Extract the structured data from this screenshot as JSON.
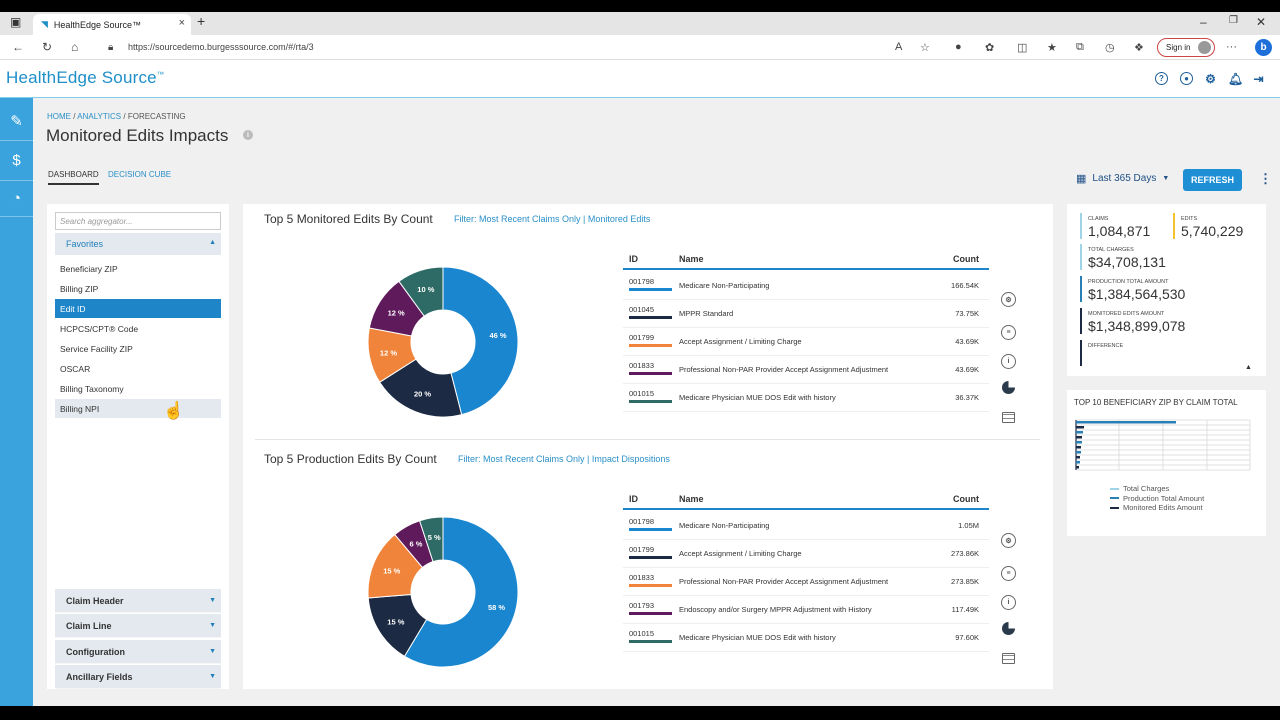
{
  "browser": {
    "tab_title": "HealthEdge Source™",
    "url": "https://sourcedemo.burgesssource.com/#/rta/3",
    "signin_label": "Sign in"
  },
  "app": {
    "logo": "HealthEdge Source",
    "logo_tm": "™"
  },
  "breadcrumb": {
    "home": "HOME",
    "analytics": "ANALYTICS",
    "current": "FORECASTING",
    "sep": "/"
  },
  "page": {
    "title": "Monitored Edits Impacts",
    "tabs": [
      {
        "label": "DASHBOARD"
      },
      {
        "label": "DECISION CUBE"
      }
    ],
    "date_range": "Last 365 Days",
    "refresh_label": "REFRESH"
  },
  "aggregator": {
    "search_placeholder": "Search aggregator...",
    "favorites_label": "Favorites",
    "items": [
      {
        "label": "Beneficiary ZIP"
      },
      {
        "label": "Billing ZIP"
      },
      {
        "label": "Edit ID"
      },
      {
        "label": "HCPCS/CPT® Code"
      },
      {
        "label": "Service Facility ZIP"
      },
      {
        "label": "OSCAR"
      },
      {
        "label": "Billing Taxonomy"
      },
      {
        "label": "Billing NPI"
      }
    ],
    "sections": [
      {
        "label": "Claim Header"
      },
      {
        "label": "Claim Line"
      },
      {
        "label": "Configuration"
      },
      {
        "label": "Ancillary Fields"
      }
    ]
  },
  "monitored": {
    "title": "Top 5 Monitored Edits By Count",
    "filter_label": "Filter:",
    "filter_value": "Most Recent Claims Only | Monitored Edits",
    "columns": {
      "id": "ID",
      "name": "Name",
      "count": "Count"
    },
    "rows": [
      {
        "id": "001798",
        "name": "Medicare Non-Participating",
        "count": "166.54K"
      },
      {
        "id": "001045",
        "name": "MPPR Standard",
        "count": "73.75K"
      },
      {
        "id": "001799",
        "name": "Accept Assignment / Limiting Charge",
        "count": "43.69K"
      },
      {
        "id": "001833",
        "name": "Professional Non-PAR Provider Accept Assignment Adjustment",
        "count": "43.69K"
      },
      {
        "id": "001015",
        "name": "Medicare Physician MUE DOS Edit with history",
        "count": "36.37K"
      }
    ]
  },
  "production": {
    "title": "Top 5 Production Edits By Count",
    "filter_label": "Filter:",
    "filter_value": "Most Recent Claims Only | Impact Dispositions",
    "columns": {
      "id": "ID",
      "name": "Name",
      "count": "Count"
    },
    "rows": [
      {
        "id": "001798",
        "name": "Medicare Non-Participating",
        "count": "1.05M"
      },
      {
        "id": "001799",
        "name": "Accept Assignment / Limiting Charge",
        "count": "273.86K"
      },
      {
        "id": "001833",
        "name": "Professional Non-PAR Provider Accept Assignment Adjustment",
        "count": "273.85K"
      },
      {
        "id": "001793",
        "name": "Endoscopy and/or Surgery MPPR Adjustment with History",
        "count": "117.49K"
      },
      {
        "id": "001015",
        "name": "Medicare Physician MUE DOS Edit with history",
        "count": "97.60K"
      }
    ]
  },
  "stats": {
    "claims_label": "CLAIMS",
    "claims_value": "1,084,871",
    "edits_label": "EDITS",
    "edits_value": "5,740,229",
    "total_charges_label": "TOTAL CHARGES",
    "total_charges_value": "$34,708,131",
    "production_label": "PRODUCTION TOTAL AMOUNT",
    "production_value": "$1,384,564,530",
    "monitored_label": "MONITORED EDITS AMOUNT",
    "monitored_value": "$1,348,899,078",
    "difference_label": "DIFFERENCE",
    "difference_value": ""
  },
  "zip_chart": {
    "title": "TOP 10 BENEFICIARY ZIP BY CLAIM TOTAL",
    "legend": [
      {
        "name": "Total Charges",
        "color": "#9fd3e6"
      },
      {
        "name": "Production Total Amount",
        "color": "#2a7fb5"
      },
      {
        "name": "Monitored Edits Amount",
        "color": "#1c2a44"
      }
    ]
  },
  "colors": {
    "accent": "#1e86c8",
    "rail": "#3aa3dd",
    "blue": "#1a86cf",
    "navy": "#1c2a44",
    "orange": "#f0843a",
    "purple": "#5e1a5a",
    "teal": "#2f6b66"
  },
  "chart_data": [
    {
      "type": "pie",
      "title": "Top 5 Monitored Edits By Count",
      "categories": [
        "001798",
        "001045",
        "001799",
        "001833",
        "001015"
      ],
      "values": [
        46,
        20,
        12,
        12,
        10
      ],
      "labels": [
        "46 %",
        "20 %",
        "12 %",
        "12 %",
        "10 %"
      ],
      "colors": [
        "#1a86cf",
        "#1c2a44",
        "#f0843a",
        "#5e1a5a",
        "#2f6b66"
      ]
    },
    {
      "type": "pie",
      "title": "Top 5 Production Edits By Count",
      "categories": [
        "001798",
        "001799",
        "001833",
        "001793",
        "001015"
      ],
      "values": [
        58,
        15,
        15,
        6,
        5
      ],
      "labels": [
        "58 %",
        "15 %",
        "15 %",
        "6 %",
        "5 %"
      ],
      "colors": [
        "#1a86cf",
        "#1c2a44",
        "#f0843a",
        "#5e1a5a",
        "#2f6b66"
      ]
    }
  ]
}
